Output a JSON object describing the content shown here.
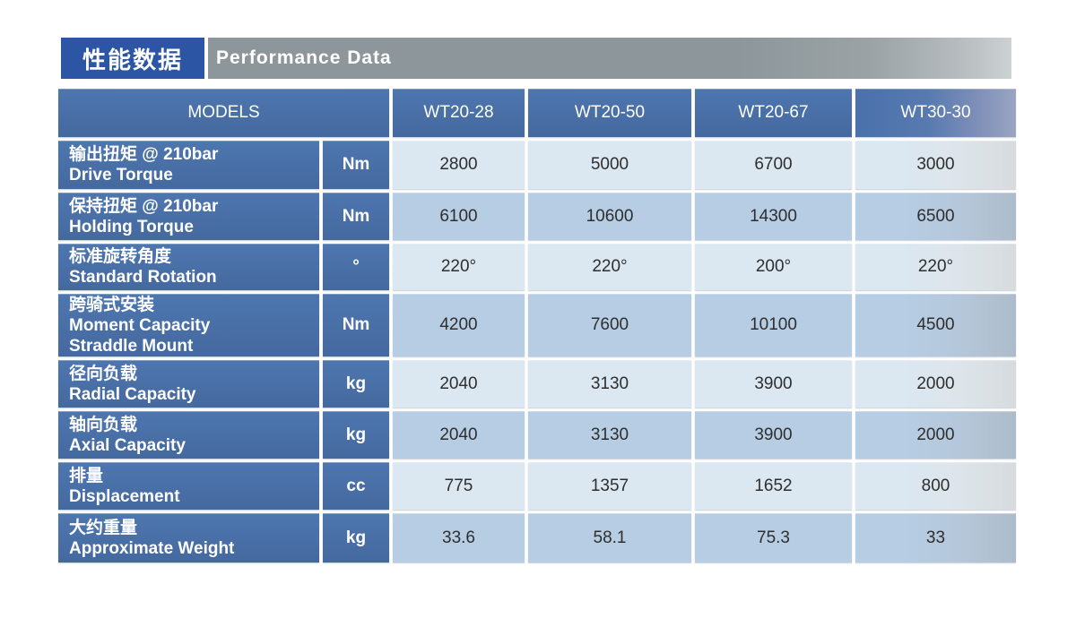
{
  "header": {
    "title_zh": "性能数据",
    "title_en": "Performance Data"
  },
  "table": {
    "models_label": "MODELS",
    "columns": [
      "WT20-28",
      "WT20-50",
      "WT20-67",
      "WT30-30"
    ],
    "rows": [
      {
        "label_zh": "输出扭矩 @ 210bar",
        "label_en_lines": [
          "Drive Torque"
        ],
        "unit": "Nm",
        "values": [
          "2800",
          "5000",
          "6700",
          "3000"
        ]
      },
      {
        "label_zh": "保持扭矩 @ 210bar",
        "label_en_lines": [
          "Holding Torque"
        ],
        "unit": "Nm",
        "values": [
          "6100",
          "10600",
          "14300",
          "6500"
        ]
      },
      {
        "label_zh": "标准旋转角度",
        "label_en_lines": [
          "Standard Rotation"
        ],
        "unit": "°",
        "values": [
          "220°",
          "220°",
          "200°",
          "220°"
        ]
      },
      {
        "label_zh": "跨骑式安装",
        "label_en_lines": [
          "Moment Capacity",
          "Straddle Mount"
        ],
        "unit": "Nm",
        "values": [
          "4200",
          "7600",
          "10100",
          "4500"
        ]
      },
      {
        "label_zh": "径向负载",
        "label_en_lines": [
          "Radial Capacity"
        ],
        "unit": "kg",
        "values": [
          "2040",
          "3130",
          "3900",
          "2000"
        ]
      },
      {
        "label_zh": "轴向负载",
        "label_en_lines": [
          "Axial Capacity"
        ],
        "unit": "kg",
        "values": [
          "2040",
          "3130",
          "3900",
          "2000"
        ]
      },
      {
        "label_zh": "排量",
        "label_en_lines": [
          "Displacement"
        ],
        "unit": "cc",
        "values": [
          "775",
          "1357",
          "1652",
          "800"
        ]
      },
      {
        "label_zh": "大约重量",
        "label_en_lines": [
          "Approximate Weight"
        ],
        "unit": "kg",
        "values": [
          "33.6",
          "58.1",
          "75.3",
          "33"
        ]
      }
    ]
  },
  "colors": {
    "title_blue": "#2c55a3",
    "cell_blue": "#4a71ab",
    "bar_gray": "#8d979b",
    "row_light": "#dbe7f1",
    "row_dark": "#b6cde4"
  }
}
